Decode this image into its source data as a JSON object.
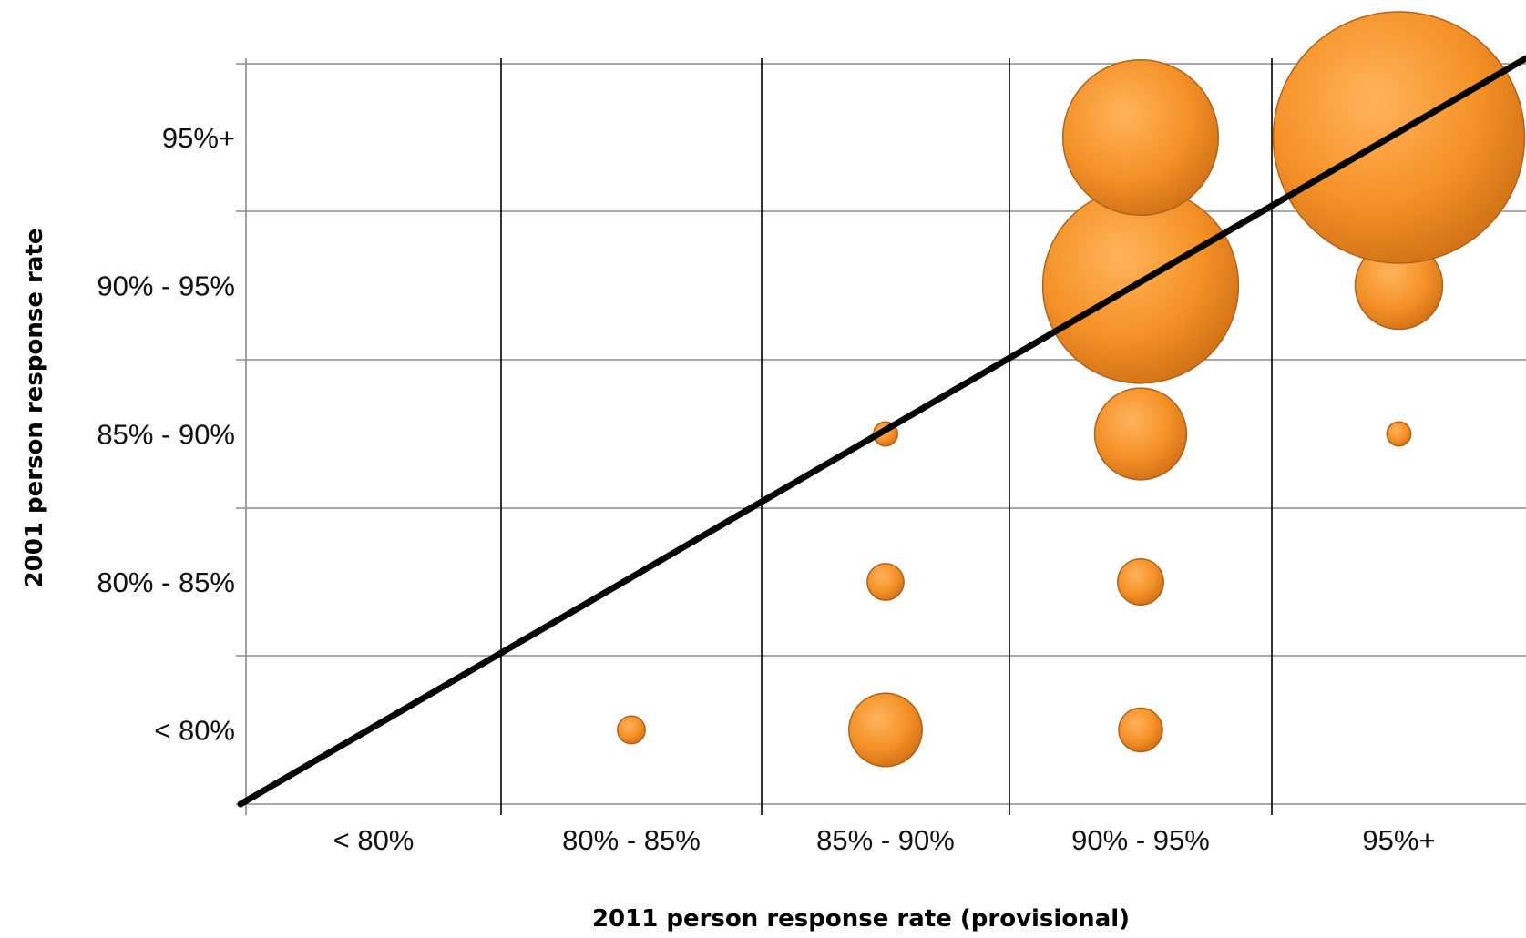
{
  "chart_data": {
    "type": "bubble",
    "xlabel": "2011 person response rate (provisional)",
    "ylabel": "2001 person response rate",
    "x_categories": [
      "< 80%",
      "80% - 85%",
      "85% - 90%",
      "90% - 95%",
      "95%+"
    ],
    "y_categories": [
      "< 80%",
      "80% - 85%",
      "85% - 90%",
      "90% - 95%",
      "95%+"
    ],
    "grid": true,
    "bubble_color": "#f28e2b",
    "reference_line": {
      "from": [
        "< 80%",
        "< 80%"
      ],
      "to": [
        "95%+",
        "95%+"
      ],
      "color": "#000000"
    },
    "points": [
      {
        "x": "80% - 85%",
        "y": "< 80%",
        "size": 2
      },
      {
        "x": "85% - 90%",
        "y": "< 80%",
        "size": 14
      },
      {
        "x": "85% - 90%",
        "y": "80% - 85%",
        "size": 3.5
      },
      {
        "x": "85% - 90%",
        "y": "85% - 90%",
        "size": 1.5
      },
      {
        "x": "90% - 95%",
        "y": "< 80%",
        "size": 5
      },
      {
        "x": "90% - 95%",
        "y": "80% - 85%",
        "size": 5.5
      },
      {
        "x": "90% - 95%",
        "y": "85% - 90%",
        "size": 22
      },
      {
        "x": "90% - 95%",
        "y": "90% - 95%",
        "size": 100
      },
      {
        "x": "90% - 95%",
        "y": "95%+",
        "size": 63
      },
      {
        "x": "95%+",
        "y": "85% - 90%",
        "size": 1.5
      },
      {
        "x": "95%+",
        "y": "90% - 95%",
        "size": 20
      },
      {
        "x": "95%+",
        "y": "95%+",
        "size": 165
      }
    ]
  }
}
